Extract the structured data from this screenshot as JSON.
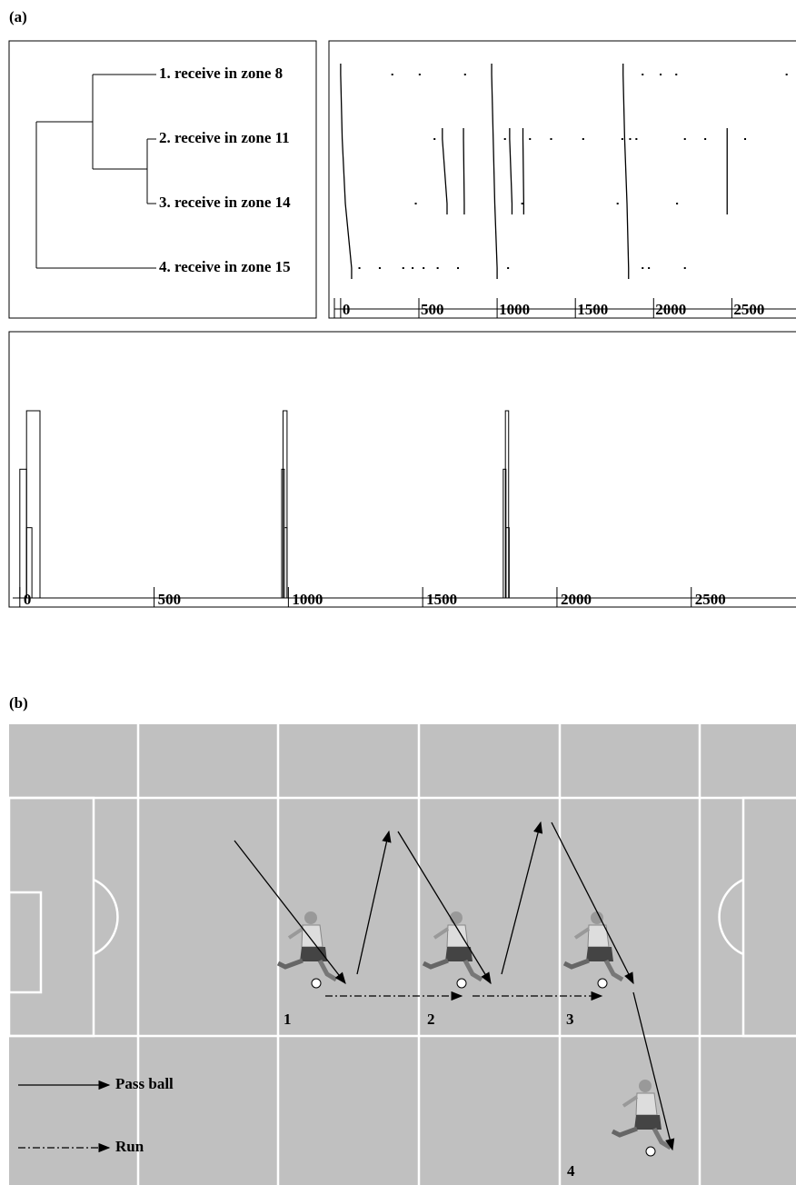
{
  "panel_a": {
    "label": "(a)",
    "dendrogram": {
      "leaves": [
        "1. receive in zone 8",
        "2. receive in zone 11",
        "3. receive in zone 14",
        "4. receive in zone 15"
      ]
    },
    "event_plot": {
      "xlim": [
        -40,
        2910
      ],
      "xticks": [
        0,
        500,
        1000,
        1500,
        2000,
        2500
      ],
      "patterns": [
        [
          0,
          10,
          30,
          70
        ],
        [
          965,
          975,
          985,
          1000
        ],
        [
          1805,
          1815,
          1830,
          1840
        ],
        [
          null,
          650,
          680,
          null
        ],
        [
          null,
          785,
          790,
          null
        ],
        [
          null,
          1080,
          1095,
          null
        ],
        [
          null,
          1165,
          1170,
          null
        ],
        [
          null,
          2470,
          2470,
          null
        ]
      ],
      "events": [
        [
          330,
          505,
          795,
          1930,
          2045,
          2145,
          2850
        ],
        [
          600,
          1050,
          1210,
          1345,
          1550,
          1800,
          1850,
          1890,
          2200,
          2330,
          2585
        ],
        [
          480,
          1160,
          1770,
          2150
        ],
        [
          120,
          250,
          400,
          460,
          530,
          620,
          750,
          1070,
          1930,
          1970,
          2200
        ]
      ]
    },
    "histogram": {
      "xlim": [
        -40,
        2890
      ],
      "ylim": [
        0,
        3
      ],
      "xticks": [
        0,
        500,
        1000,
        1500,
        2000,
        2500
      ],
      "bars": [
        {
          "start": 25,
          "end": 75,
          "height": 3
        },
        {
          "start": 0,
          "end": 25,
          "height": 2
        },
        {
          "start": 25,
          "end": 45,
          "height": 1
        },
        {
          "start": 980,
          "end": 995,
          "height": 3
        },
        {
          "start": 975,
          "end": 985,
          "height": 2
        },
        {
          "start": 985,
          "end": 995,
          "height": 1
        },
        {
          "start": 1808,
          "end": 1820,
          "height": 3
        },
        {
          "start": 1800,
          "end": 1810,
          "height": 2
        },
        {
          "start": 1810,
          "end": 1822,
          "height": 1
        }
      ]
    }
  },
  "panel_b": {
    "label": "(b)",
    "players": [
      "1",
      "2",
      "3",
      "4"
    ],
    "legend": [
      "Pass ball",
      "Run"
    ]
  }
}
